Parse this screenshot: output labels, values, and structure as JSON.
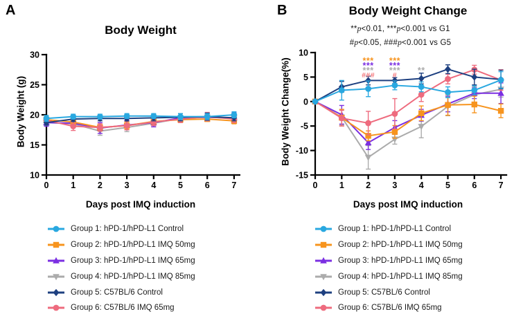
{
  "figure": {
    "panels": [
      {
        "letter": "A",
        "title": "Body Weight",
        "x_label": "Days post IMQ induction",
        "y_label": "Body Weight (g)"
      },
      {
        "letter": "B",
        "title": "Body Weight Change",
        "x_label": "Days post IMQ induction",
        "y_label": "Body Weight Change(%)",
        "annotations": [
          "**p<0.01, ***p<0.001 vs G1",
          "#p<0.05, ###p<0.001 vs G5"
        ]
      }
    ],
    "legend": {
      "items": [
        {
          "label": "Group 1: hPD-1/hPD-L1 Control",
          "color": "#29A8E0",
          "marker": "circle"
        },
        {
          "label": "Group 2: hPD-1/hPD-L1 IMQ 50mg",
          "color": "#F7941E",
          "marker": "square"
        },
        {
          "label": "Group 3: hPD-1/hPD-L1 IMQ 65mg",
          "color": "#7B2FE2",
          "marker": "triangle-up"
        },
        {
          "label": "Group 4: hPD-1/hPD-L1 IMQ 85mg",
          "color": "#ABABAB",
          "marker": "triangle-down"
        },
        {
          "label": "Group 5: C57BL/6 Control",
          "color": "#1E4080",
          "marker": "diamond"
        },
        {
          "label": "Group 6: C57BL/6 IMQ 65mg",
          "color": "#EE6B7E",
          "marker": "circle"
        }
      ]
    }
  },
  "chart_data": [
    {
      "type": "line",
      "title": "Body Weight",
      "xlabel": "Days post IMQ induction",
      "ylabel": "Body Weight (g)",
      "x": [
        0,
        1,
        2,
        3,
        4,
        5,
        6,
        7
      ],
      "ylim": [
        10,
        30
      ],
      "yticks": [
        10,
        15,
        20,
        25,
        30
      ],
      "legend_position": "bottom",
      "grid": false,
      "series": [
        {
          "name": "Group 1: hPD-1/hPD-L1 Control",
          "color": "#29A8E0",
          "marker": "circle",
          "values": [
            19.4,
            19.7,
            19.7,
            19.8,
            19.8,
            19.7,
            19.7,
            20.0
          ],
          "errors": [
            0.5,
            0.4,
            0.4,
            0.4,
            0.4,
            0.5,
            0.5,
            0.5
          ]
        },
        {
          "name": "Group 2: hPD-1/hPD-L1 IMQ 50mg",
          "color": "#F7941E",
          "marker": "square",
          "values": [
            19.2,
            18.8,
            17.9,
            18.2,
            18.9,
            19.2,
            19.3,
            19.0
          ],
          "errors": [
            0.5,
            0.5,
            0.6,
            0.6,
            0.5,
            0.5,
            0.4,
            0.5
          ]
        },
        {
          "name": "Group 3: hPD-1/hPD-L1 IMQ 65mg",
          "color": "#7B2FE2",
          "marker": "triangle-up",
          "values": [
            18.7,
            18.6,
            17.8,
            18.3,
            18.7,
            19.5,
            19.6,
            19.5
          ],
          "errors": [
            0.6,
            0.6,
            0.9,
            0.8,
            0.7,
            0.7,
            0.6,
            0.9
          ]
        },
        {
          "name": "Group 4: hPD-1/hPD-L1 IMQ 85mg",
          "color": "#ABABAB",
          "marker": "triangle-down",
          "values": [
            18.7,
            18.5,
            17.3,
            17.9,
            18.6,
            19.4,
            19.6,
            19.4
          ],
          "errors": [
            0.5,
            0.5,
            0.7,
            0.7,
            0.6,
            0.5,
            0.5,
            0.5
          ]
        },
        {
          "name": "Group 5: C57BL/6 Control",
          "color": "#1E4080",
          "marker": "diamond",
          "values": [
            18.7,
            19.3,
            19.4,
            19.4,
            19.5,
            19.6,
            19.7,
            19.5
          ],
          "errors": [
            0.4,
            0.4,
            0.4,
            0.4,
            0.5,
            0.6,
            0.6,
            0.5
          ]
        },
        {
          "name": "Group 6: C57BL/6 IMQ 65mg",
          "color": "#EE6B7E",
          "marker": "circle",
          "values": [
            19.1,
            18.1,
            17.9,
            18.2,
            18.8,
            19.3,
            19.7,
            19.3
          ],
          "errors": [
            0.5,
            0.7,
            0.6,
            0.7,
            0.6,
            0.6,
            0.7,
            0.6
          ]
        }
      ]
    },
    {
      "type": "line",
      "title": "Body Weight Change",
      "xlabel": "Days post IMQ induction",
      "ylabel": "Body Weight Change(%)",
      "x": [
        0,
        1,
        2,
        3,
        4,
        5,
        6,
        7
      ],
      "ylim": [
        -15,
        10
      ],
      "yticks": [
        -15,
        -10,
        -5,
        0,
        5,
        10
      ],
      "legend_position": "bottom",
      "grid": false,
      "annotations": [
        "**p<0.01, ***p<0.001 vs G1",
        "#p<0.05, ###p<0.001 vs G5"
      ],
      "series": [
        {
          "name": "Group 1: hPD-1/hPD-L1 Control",
          "color": "#29A8E0",
          "marker": "circle",
          "values": [
            0,
            2.3,
            2.6,
            3.3,
            3.0,
            1.9,
            2.3,
            4.4
          ],
          "errors": [
            0,
            2.0,
            1.6,
            0.9,
            1.0,
            1.1,
            0.9,
            1.7
          ]
        },
        {
          "name": "Group 2: hPD-1/hPD-L1 IMQ 50mg",
          "color": "#F7941E",
          "marker": "square",
          "values": [
            0,
            -3.3,
            -7.0,
            -6.2,
            -2.4,
            -0.7,
            -0.6,
            -1.9
          ],
          "errors": [
            0,
            1.7,
            1.0,
            1.3,
            1.5,
            2.1,
            1.7,
            1.4
          ]
        },
        {
          "name": "Group 3: hPD-1/hPD-L1 IMQ 65mg",
          "color": "#7B2FE2",
          "marker": "triangle-up",
          "values": [
            0,
            -2.7,
            -8.4,
            -5.3,
            -2.8,
            -0.5,
            1.7,
            1.7
          ],
          "errors": [
            0,
            1.9,
            1.4,
            1.4,
            1.2,
            1.6,
            1.1,
            2.1
          ]
        },
        {
          "name": "Group 4: hPD-1/hPD-L1 IMQ 85mg",
          "color": "#ABABAB",
          "marker": "triangle-down",
          "values": [
            0,
            -3.2,
            -11.4,
            -7.7,
            -5.1,
            -1.0,
            1.4,
            2.5
          ],
          "errors": [
            0,
            1.6,
            2.4,
            1.0,
            2.3,
            1.9,
            1.6,
            1.6
          ]
        },
        {
          "name": "Group 5: C57BL/6 Control",
          "color": "#1E4080",
          "marker": "diamond",
          "values": [
            0,
            3.0,
            4.3,
            4.3,
            4.7,
            6.6,
            5.0,
            4.5
          ],
          "errors": [
            0,
            1.1,
            0.9,
            0.6,
            1.1,
            0.9,
            1.6,
            1.9
          ]
        },
        {
          "name": "Group 6: C57BL/6 IMQ 65mg",
          "color": "#EE6B7E",
          "marker": "circle",
          "values": [
            0,
            -3.4,
            -4.4,
            -2.5,
            1.4,
            4.6,
            6.5,
            4.4
          ],
          "errors": [
            0,
            1.6,
            2.4,
            3.1,
            1.4,
            1.0,
            0.9,
            2.1
          ]
        }
      ],
      "significance": [
        {
          "x": 2,
          "marks": [
            {
              "text": "***",
              "color": "#F7941E",
              "row": 0
            },
            {
              "text": "***",
              "color": "#7B2FE2",
              "row": 1
            },
            {
              "text": "***",
              "color": "#ABABAB",
              "row": 2
            },
            {
              "text": "###",
              "color": "#F4777B",
              "row": 3
            }
          ]
        },
        {
          "x": 3,
          "marks": [
            {
              "text": "***",
              "color": "#F7941E",
              "row": 0
            },
            {
              "text": "***",
              "color": "#7B2FE2",
              "row": 1
            },
            {
              "text": "***",
              "color": "#ABABAB",
              "row": 2
            },
            {
              "text": "#",
              "color": "#F4777B",
              "row": 3
            }
          ]
        },
        {
          "x": 4,
          "marks": [
            {
              "text": "**",
              "color": "#ABABAB",
              "row": 2
            }
          ]
        }
      ]
    }
  ]
}
